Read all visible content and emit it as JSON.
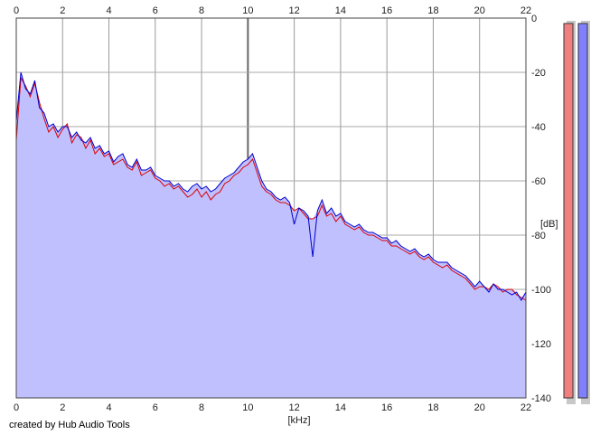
{
  "chart_data": {
    "type": "area",
    "credit": "created by Hub Audio Tools",
    "xlabel": "[kHz]",
    "ylabel": "[dB]",
    "xlim": [
      0,
      22
    ],
    "ylim": [
      -140,
      0
    ],
    "x_ticks": [
      "0",
      "2",
      "4",
      "6",
      "8",
      "10",
      "12",
      "14",
      "16",
      "18",
      "20",
      "22"
    ],
    "y_ticks": [
      "0",
      "-20",
      "-40",
      "-60",
      "-80",
      "-100",
      "-120",
      "-140"
    ],
    "grid": true,
    "series": [
      {
        "color": "#dd0000",
        "x": [
          0,
          0.2,
          0.4,
          0.6,
          0.8,
          1.0,
          1.2,
          1.4,
          1.6,
          1.8,
          2.0,
          2.2,
          2.4,
          2.6,
          2.8,
          3.0,
          3.2,
          3.4,
          3.6,
          3.8,
          4.0,
          4.2,
          4.4,
          4.6,
          4.8,
          5.0,
          5.2,
          5.4,
          5.6,
          5.8,
          6.0,
          6.2,
          6.4,
          6.6,
          6.8,
          7.0,
          7.2,
          7.4,
          7.6,
          7.8,
          8.0,
          8.2,
          8.4,
          8.6,
          8.8,
          9.0,
          9.2,
          9.4,
          9.6,
          9.8,
          10.0,
          10.2,
          10.4,
          10.6,
          10.8,
          11.0,
          11.2,
          11.4,
          11.6,
          11.8,
          12.0,
          12.2,
          12.4,
          12.6,
          12.8,
          13.0,
          13.2,
          13.4,
          13.6,
          13.8,
          14.0,
          14.2,
          14.4,
          14.6,
          14.8,
          15.0,
          15.2,
          15.4,
          15.6,
          15.8,
          16.0,
          16.2,
          16.4,
          16.6,
          16.8,
          17.0,
          17.2,
          17.4,
          17.6,
          17.8,
          18.0,
          18.2,
          18.4,
          18.6,
          18.8,
          19.0,
          19.2,
          19.4,
          19.6,
          19.8,
          20.0,
          20.2,
          20.4,
          20.6,
          20.8,
          21.0,
          21.2,
          21.4,
          21.6,
          21.8,
          22.0
        ],
        "values": [
          -45,
          -22,
          -25,
          -29,
          -24,
          -31,
          -37,
          -42,
          -40,
          -44,
          -41,
          -39,
          -46,
          -43,
          -44,
          -48,
          -45,
          -50,
          -48,
          -51,
          -50,
          -54,
          -53,
          -52,
          -55,
          -56,
          -53,
          -58,
          -57,
          -56,
          -59,
          -60,
          -62,
          -61,
          -63,
          -62,
          -64,
          -66,
          -65,
          -63,
          -66,
          -64,
          -67,
          -65,
          -64,
          -61,
          -60,
          -58,
          -57,
          -55,
          -54,
          -52,
          -57,
          -62,
          -64,
          -65,
          -67,
          -68,
          -68,
          -69,
          -71,
          -70,
          -72,
          -74,
          -74,
          -73,
          -69,
          -73,
          -72,
          -75,
          -73,
          -76,
          -77,
          -78,
          -77,
          -79,
          -80,
          -80,
          -81,
          -82,
          -82,
          -84,
          -84,
          -85,
          -86,
          -87,
          -86,
          -88,
          -89,
          -88,
          -90,
          -91,
          -92,
          -91,
          -93,
          -94,
          -95,
          -96,
          -98,
          -100,
          -99,
          -99,
          -100,
          -98,
          -99,
          -101,
          -100,
          -100,
          -102,
          -103,
          -104
        ]
      },
      {
        "color": "#0000cc",
        "x": [
          0,
          0.2,
          0.4,
          0.6,
          0.8,
          1.0,
          1.2,
          1.4,
          1.6,
          1.8,
          2.0,
          2.2,
          2.4,
          2.6,
          2.8,
          3.0,
          3.2,
          3.4,
          3.6,
          3.8,
          4.0,
          4.2,
          4.4,
          4.6,
          4.8,
          5.0,
          5.2,
          5.4,
          5.6,
          5.8,
          6.0,
          6.2,
          6.4,
          6.6,
          6.8,
          7.0,
          7.2,
          7.4,
          7.6,
          7.8,
          8.0,
          8.2,
          8.4,
          8.6,
          8.8,
          9.0,
          9.2,
          9.4,
          9.6,
          9.8,
          10.0,
          10.2,
          10.4,
          10.6,
          10.8,
          11.0,
          11.2,
          11.4,
          11.6,
          11.8,
          12.0,
          12.2,
          12.4,
          12.6,
          12.8,
          13.0,
          13.2,
          13.4,
          13.6,
          13.8,
          14.0,
          14.2,
          14.4,
          14.6,
          14.8,
          15.0,
          15.2,
          15.4,
          15.6,
          15.8,
          16.0,
          16.2,
          16.4,
          16.6,
          16.8,
          17.0,
          17.2,
          17.4,
          17.6,
          17.8,
          18.0,
          18.2,
          18.4,
          18.6,
          18.8,
          19.0,
          19.2,
          19.4,
          19.6,
          19.8,
          20.0,
          20.2,
          20.4,
          20.6,
          20.8,
          21.0,
          21.2,
          21.4,
          21.6,
          21.8,
          22.0
        ],
        "values": [
          -38,
          -20,
          -26,
          -28,
          -23,
          -33,
          -35,
          -40,
          -39,
          -42,
          -40,
          -40,
          -44,
          -42,
          -45,
          -46,
          -44,
          -48,
          -47,
          -50,
          -49,
          -53,
          -51,
          -50,
          -54,
          -55,
          -52,
          -56,
          -56,
          -55,
          -58,
          -59,
          -60,
          -60,
          -62,
          -61,
          -63,
          -64,
          -62,
          -61,
          -63,
          -62,
          -64,
          -63,
          -61,
          -59,
          -58,
          -57,
          -55,
          -53,
          -52,
          -50,
          -55,
          -60,
          -63,
          -64,
          -66,
          -67,
          -66,
          -68,
          -76,
          -70,
          -71,
          -73,
          -88,
          -71,
          -67,
          -72,
          -70,
          -73,
          -72,
          -75,
          -76,
          -77,
          -76,
          -78,
          -79,
          -79,
          -80,
          -81,
          -81,
          -83,
          -82,
          -84,
          -85,
          -86,
          -85,
          -87,
          -88,
          -87,
          -89,
          -90,
          -90,
          -90,
          -92,
          -93,
          -94,
          -95,
          -97,
          -99,
          -97,
          -99,
          -101,
          -98,
          -100,
          -100,
          -101,
          -102,
          -101,
          -104,
          -101
        ]
      }
    ],
    "fill_color": "#c0c0ff",
    "meters": [
      {
        "channel": "left",
        "color": "#f08080",
        "level_db": 0
      },
      {
        "channel": "right",
        "color": "#8080ff",
        "level_db": 0
      }
    ]
  }
}
